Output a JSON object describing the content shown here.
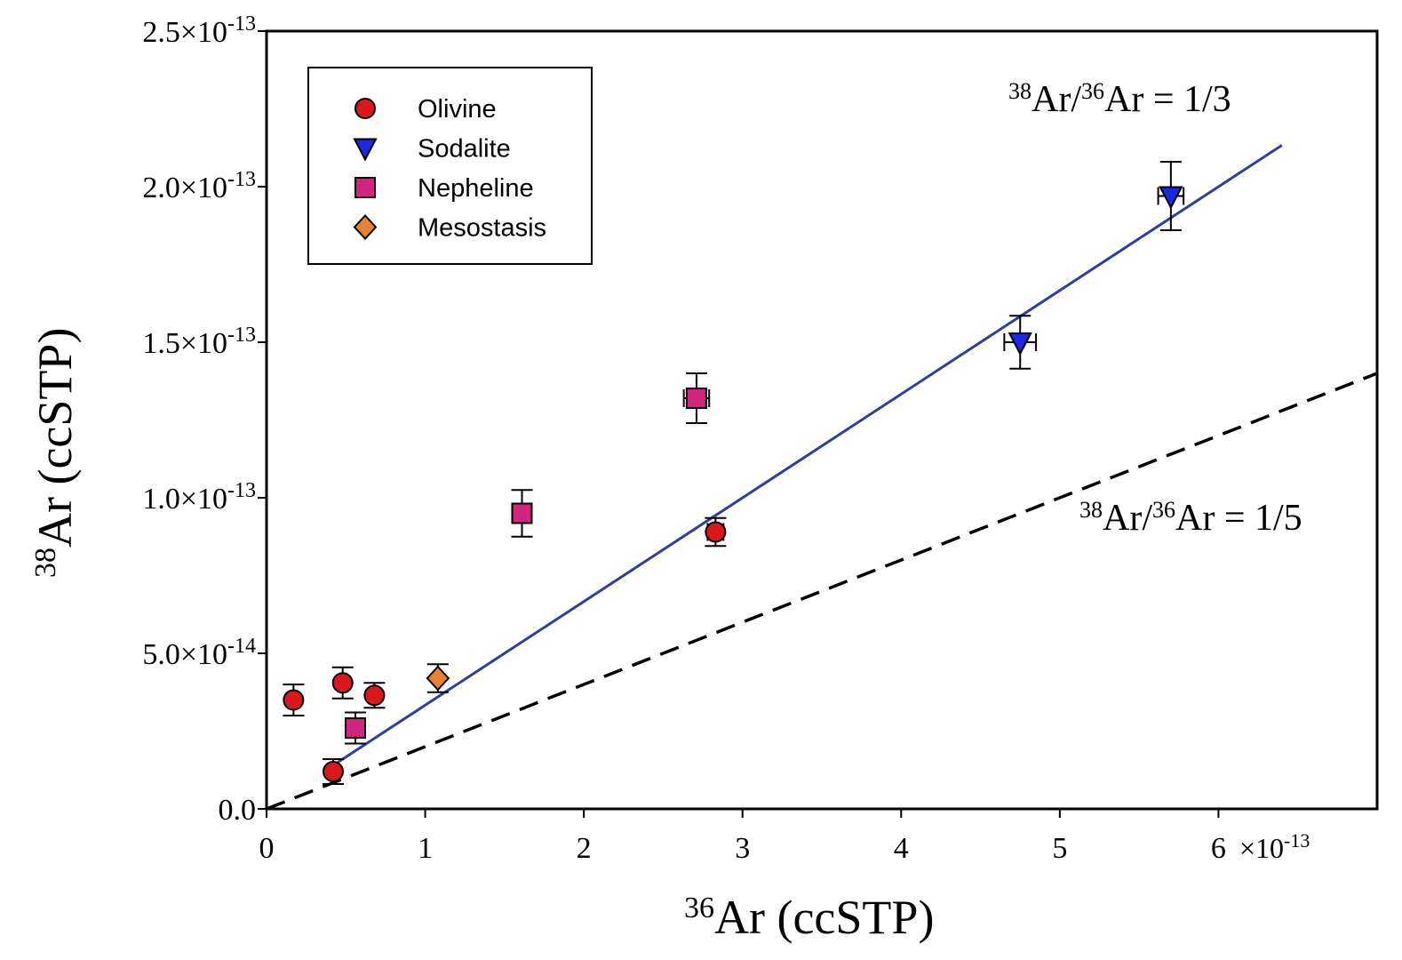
{
  "chart_data": {
    "type": "scatter",
    "x_axis": {
      "label_sup": "36",
      "label_main": "Ar (ccSTP)",
      "range": [
        0,
        7e-13
      ],
      "ticks": [
        0,
        1e-13,
        2e-13,
        3e-13,
        4e-13,
        5e-13,
        6e-13
      ],
      "tick_labels": [
        "0",
        "1",
        "2",
        "3",
        "4",
        "5",
        "6"
      ],
      "multiplier_prefix": "×10",
      "multiplier_exp": "-13"
    },
    "y_axis": {
      "label_sup": "38",
      "label_main": "Ar (ccSTP)",
      "range": [
        0,
        2.5e-13
      ],
      "ticks": [
        0,
        5e-14,
        1e-13,
        1.5e-13,
        2e-13,
        2.5e-13
      ],
      "tick_labels": [
        {
          "mant": "0.0",
          "exp": ""
        },
        {
          "mant": "5.0×10",
          "exp": "-14"
        },
        {
          "mant": "1.0×10",
          "exp": "-13"
        },
        {
          "mant": "1.5×10",
          "exp": "-13"
        },
        {
          "mant": "2.0×10",
          "exp": "-13"
        },
        {
          "mant": "2.5×10",
          "exp": "-13"
        }
      ]
    },
    "series": [
      {
        "name": "Olivine",
        "marker": "circle",
        "color": "#d7191c",
        "points": [
          {
            "x": 1.7e-14,
            "y": 3.5e-14,
            "ey": 5e-15,
            "ex": 0.0
          },
          {
            "x": 4.8e-14,
            "y": 4.05e-14,
            "ey": 5e-15,
            "ex": 0.0
          },
          {
            "x": 6.8e-14,
            "y": 3.65e-14,
            "ey": 4e-15,
            "ex": 0.0
          },
          {
            "x": 4.2e-14,
            "y": 1.2e-14,
            "ey": 4e-15,
            "ex": 0.0
          },
          {
            "x": 2.83e-13,
            "y": 8.9e-14,
            "ey": 4.5e-15,
            "ex": 5e-15
          }
        ]
      },
      {
        "name": "Sodalite",
        "marker": "triangle-down",
        "color": "#1d28e0",
        "points": [
          {
            "x": 4.75e-13,
            "y": 1.5e-13,
            "ey": 8.5e-15,
            "ex": 1e-14
          },
          {
            "x": 5.7e-13,
            "y": 1.97e-13,
            "ey": 1.1e-14,
            "ex": 8e-15
          }
        ]
      },
      {
        "name": "Nepheline",
        "marker": "square",
        "color": "#d0267f",
        "points": [
          {
            "x": 5.6e-14,
            "y": 2.6e-14,
            "ey": 5e-15,
            "ex": 0.0
          },
          {
            "x": 1.61e-13,
            "y": 9.5e-14,
            "ey": 7.5e-15,
            "ex": 0.0
          },
          {
            "x": 2.71e-13,
            "y": 1.32e-13,
            "ey": 8e-15,
            "ex": 8e-15
          }
        ]
      },
      {
        "name": "Mesostasis",
        "marker": "diamond",
        "color": "#e8822e",
        "points": [
          {
            "x": 1.08e-13,
            "y": 4.2e-14,
            "ey": 4.5e-15,
            "ex": 0.0
          }
        ]
      }
    ],
    "reference_lines": [
      {
        "name": "ratio-1-3",
        "slope": 0.3333,
        "x_from": 4.5e-14,
        "x_to": 6.4e-13,
        "style": "solid",
        "color": "#2e3f9c",
        "label_a": "38",
        "label_b": "Ar/",
        "label_c": "36",
        "label_d": "Ar = 1/3"
      },
      {
        "name": "ratio-1-5",
        "slope": 0.2,
        "x_from": 0,
        "x_to": 7e-13,
        "style": "dashed",
        "color": "#000000",
        "label_a": "38",
        "label_b": "Ar/",
        "label_c": "36",
        "label_d": "Ar = 1/5"
      }
    ],
    "legend_position": "top-left"
  }
}
